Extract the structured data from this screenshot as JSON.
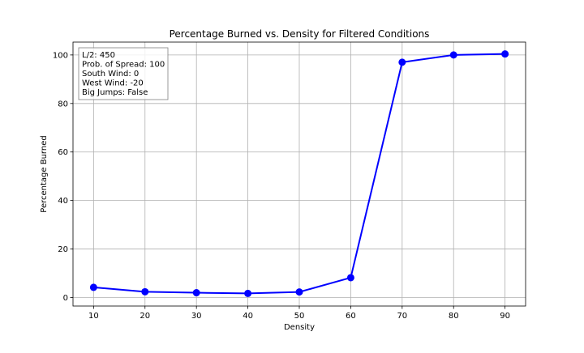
{
  "chart_data": {
    "type": "line",
    "title": "Percentage Burned vs. Density for Filtered Conditions",
    "xlabel": "Density",
    "ylabel": "Percentage Burned",
    "x": [
      10,
      20,
      30,
      40,
      50,
      60,
      70,
      80,
      90
    ],
    "series": [
      {
        "values": [
          4.2,
          2.4,
          2.0,
          1.7,
          2.3,
          8.2,
          97.0,
          100.0,
          100.4
        ],
        "color": "#0000ff",
        "marker": "circle"
      }
    ],
    "xlim": [
      6,
      94
    ],
    "ylim": [
      -3.5,
      105.3
    ],
    "xticks": [
      10,
      20,
      30,
      40,
      50,
      60,
      70,
      80,
      90
    ],
    "yticks": [
      0,
      20,
      40,
      60,
      80,
      100
    ],
    "grid": true,
    "annotation": {
      "position": "top-left",
      "lines": [
        "L/2: 450",
        "Prob. of Spread: 100",
        "South Wind: 0",
        "West Wind: -20",
        "Big Jumps: False"
      ]
    }
  }
}
